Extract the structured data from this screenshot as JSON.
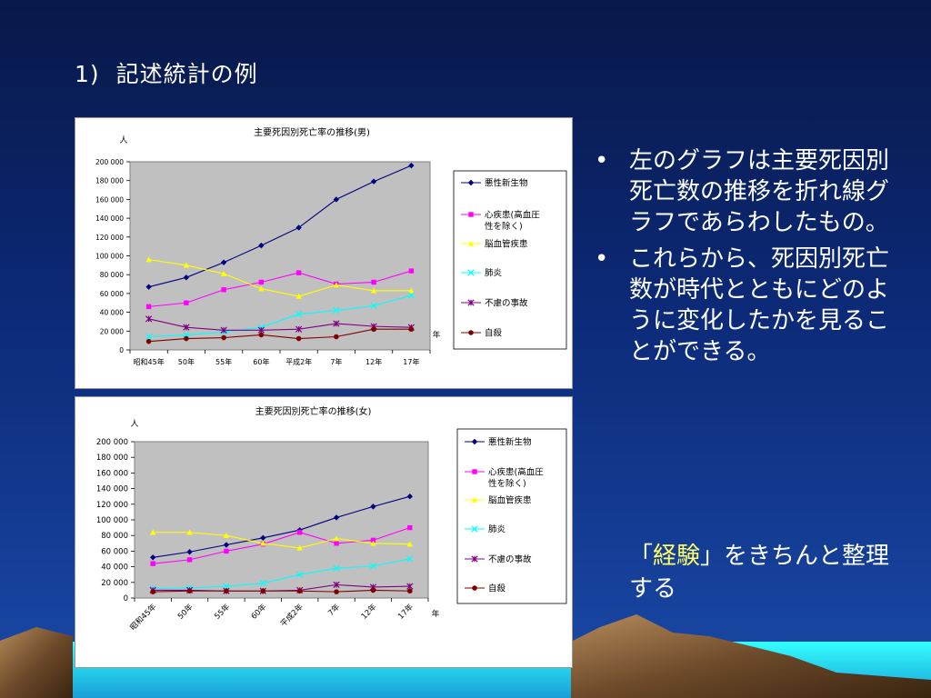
{
  "slide": {
    "title_number": "1)",
    "title_text": "記述統計の例",
    "bullets": [
      "左のグラフは主要死因別死亡数の推移を折れ線グラフであらわしたもの。",
      "これらから、死因別死亡数が時代とともにどのように変化したかを見ることができる。"
    ],
    "note_open": "「",
    "note_highlight": "経験",
    "note_rest": "」をきちんと整理する",
    "bullet_char": "•"
  },
  "chart_data": [
    {
      "type": "line",
      "title": "主要死因別死亡率の推移(男)",
      "ylabel": "人",
      "xlabel": "年",
      "categories": [
        "昭和45年",
        "50年",
        "55年",
        "60年",
        "平成2年",
        "7年",
        "12年",
        "17年"
      ],
      "ylim": [
        0,
        200000
      ],
      "yticks": [
        "0",
        "20 000",
        "40 000",
        "60 000",
        "80 000",
        "100 000",
        "120 000",
        "140 000",
        "160 000",
        "180 000",
        "200 000"
      ],
      "ytick_values": [
        0,
        20000,
        40000,
        60000,
        80000,
        100000,
        120000,
        140000,
        160000,
        180000,
        200000
      ],
      "legend_position": "right",
      "plot_background": "#c0c0c0",
      "series": [
        {
          "name": "悪性新生物",
          "color": "#000080",
          "marker": "diamond",
          "values": [
            67000,
            77000,
            93000,
            111000,
            130000,
            160000,
            179000,
            196000
          ]
        },
        {
          "name": "心疾患(高血圧性を除く)",
          "color": "#ff00ff",
          "marker": "square",
          "values": [
            46000,
            50000,
            64000,
            72000,
            82000,
            70000,
            72000,
            84000
          ]
        },
        {
          "name": "脳血管疾患",
          "color": "#ffff00",
          "marker": "triangle",
          "values": [
            96000,
            90000,
            81000,
            65000,
            57000,
            69000,
            63000,
            63000
          ]
        },
        {
          "name": "肺炎",
          "color": "#00ffff",
          "marker": "x",
          "values": [
            14000,
            16000,
            19000,
            24000,
            38000,
            42000,
            47000,
            58000
          ]
        },
        {
          "name": "不慮の事故",
          "color": "#800080",
          "marker": "star",
          "values": [
            33000,
            24000,
            21000,
            21000,
            22000,
            28000,
            25000,
            24000
          ]
        },
        {
          "name": "自殺",
          "color": "#800000",
          "marker": "circle",
          "values": [
            9000,
            12000,
            13000,
            16000,
            12000,
            14000,
            22000,
            22000
          ]
        }
      ]
    },
    {
      "type": "line",
      "title": "主要死因別死亡率の推移(女)",
      "ylabel": "人",
      "xlabel": "年",
      "categories": [
        "昭和45年",
        "50年",
        "55年",
        "60年",
        "平成2年",
        "7年",
        "12年",
        "17年"
      ],
      "ylim": [
        0,
        200000
      ],
      "yticks": [
        "0",
        "20 000",
        "40 000",
        "60 000",
        "80 000",
        "100 000",
        "120 000",
        "140 000",
        "160 000",
        "180 000",
        "200 000"
      ],
      "ytick_values": [
        0,
        20000,
        40000,
        60000,
        80000,
        100000,
        120000,
        140000,
        160000,
        180000,
        200000
      ],
      "legend_position": "right",
      "plot_background": "#c0c0c0",
      "series": [
        {
          "name": "悪性新生物",
          "color": "#000080",
          "marker": "diamond",
          "values": [
            52000,
            59000,
            68000,
            77000,
            87000,
            103000,
            117000,
            130000
          ]
        },
        {
          "name": "心疾患(高血圧性を除く)",
          "color": "#ff00ff",
          "marker": "square",
          "values": [
            44000,
            49000,
            60000,
            69000,
            84000,
            70000,
            74000,
            90000
          ]
        },
        {
          "name": "脳血管疾患",
          "color": "#ffff00",
          "marker": "triangle",
          "values": [
            84000,
            84000,
            80000,
            70000,
            64000,
            76000,
            70000,
            69000
          ]
        },
        {
          "name": "肺炎",
          "color": "#00ffff",
          "marker": "x",
          "values": [
            12000,
            13000,
            15000,
            19000,
            30000,
            38000,
            41000,
            50000
          ]
        },
        {
          "name": "不慮の事故",
          "color": "#800080",
          "marker": "star",
          "values": [
            10000,
            10000,
            9000,
            9000,
            10000,
            17000,
            14000,
            15000
          ]
        },
        {
          "name": "自殺",
          "color": "#800000",
          "marker": "circle",
          "values": [
            8000,
            9000,
            9000,
            9000,
            9000,
            8000,
            10000,
            9000
          ]
        }
      ]
    }
  ]
}
